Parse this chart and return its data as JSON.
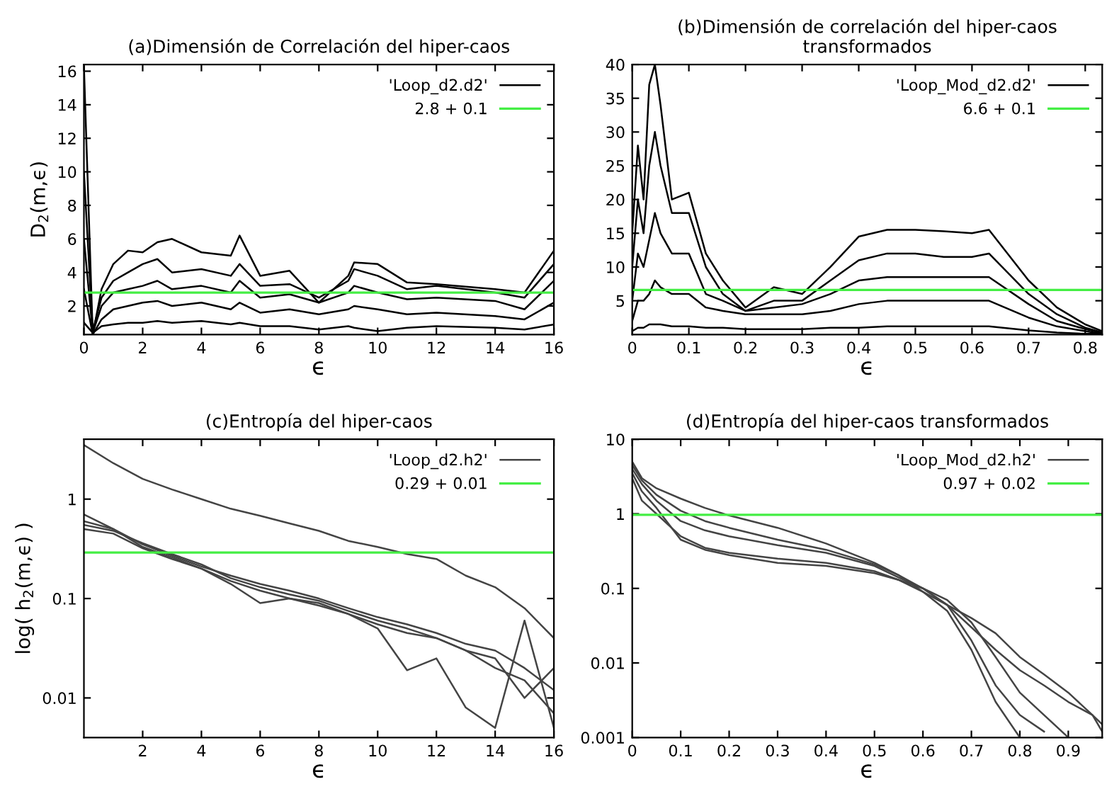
{
  "chart_data": [
    {
      "type": "line",
      "title": "(a)Dimensión de Correlación del hiper-caos",
      "xlabel": "ϵ",
      "ylabel": "D$_{2}$(m,ϵ)",
      "x": [
        0,
        0.3,
        0.6,
        1,
        1.5,
        2,
        2.5,
        3,
        4,
        5,
        5.3,
        6,
        7,
        8,
        9,
        9.2,
        10,
        11,
        12,
        14,
        15,
        16
      ],
      "series": [
        {
          "name": "'Loop_d2.d2'",
          "color": "#000000",
          "values": [
            16.3,
            0.3,
            3,
            4.5,
            5.3,
            5.2,
            5.8,
            6,
            5.2,
            5,
            6.2,
            3.8,
            4.1,
            2.2,
            3.8,
            4.6,
            4.5,
            3.4,
            3.3,
            3.0,
            2.8,
            5.3
          ]
        },
        {
          "color": "#000000",
          "values": [
            10,
            0.5,
            2.5,
            3.5,
            4,
            4.5,
            4.8,
            4,
            4.2,
            3.8,
            4.5,
            3.2,
            3.3,
            2.5,
            3.5,
            4.2,
            3.8,
            3,
            3.2,
            2.8,
            2.5,
            4.5
          ]
        },
        {
          "color": "#000000",
          "values": [
            6,
            0.4,
            2,
            2.8,
            3,
            3.2,
            3.5,
            3,
            3.2,
            2.8,
            3.5,
            2.5,
            2.7,
            2.2,
            2.8,
            3.2,
            2.8,
            2.4,
            2.5,
            2.3,
            1.8,
            3.5
          ]
        },
        {
          "color": "#000000",
          "values": [
            3,
            0.3,
            1.2,
            1.8,
            2,
            2.2,
            2.3,
            2,
            2.2,
            1.8,
            2.2,
            1.6,
            1.8,
            1.5,
            1.8,
            2,
            1.8,
            1.5,
            1.6,
            1.4,
            1.2,
            2.2
          ]
        },
        {
          "color": "#000000",
          "values": [
            1,
            0.4,
            0.8,
            0.9,
            1,
            1,
            1.1,
            1,
            1.1,
            0.9,
            1,
            0.8,
            0.8,
            0.6,
            0.8,
            0.7,
            0.5,
            0.7,
            0.8,
            0.7,
            0.6,
            0.9
          ]
        }
      ],
      "ref_lines": [
        {
          "axis": "y",
          "value": 2.8,
          "label": "2.8 + 0.1",
          "color": "#44ee44"
        }
      ],
      "xlim": [
        0,
        16
      ],
      "xticks": [
        0,
        2,
        4,
        6,
        8,
        10,
        12,
        14,
        16
      ],
      "ylim": [
        0.3,
        16.4
      ],
      "yticks": [
        2,
        4,
        6,
        8,
        10,
        12,
        14,
        16
      ],
      "legend": "top right",
      "grid": false
    },
    {
      "type": "line",
      "title": "(b)Dimensión de correlación del hiper-caos\ntransformados",
      "xlabel": "ϵ",
      "x": [
        0,
        0.01,
        0.02,
        0.03,
        0.04,
        0.05,
        0.07,
        0.1,
        0.13,
        0.16,
        0.2,
        0.25,
        0.3,
        0.35,
        0.4,
        0.45,
        0.5,
        0.55,
        0.6,
        0.63,
        0.7,
        0.75,
        0.8,
        0.83
      ],
      "series": [
        {
          "name": "'Loop_Mod_d2.d2'",
          "color": "#000000",
          "values": [
            15,
            28,
            20,
            37,
            40,
            34,
            20,
            21,
            12,
            8,
            4,
            7,
            6,
            10,
            14.5,
            15.5,
            15.5,
            15.3,
            15,
            15.5,
            8,
            4,
            1.5,
            0.5
          ]
        },
        {
          "color": "#000000",
          "values": [
            10,
            20,
            15,
            25,
            30,
            25,
            18,
            18,
            10,
            6,
            3.5,
            5,
            5,
            8,
            11,
            12,
            12,
            11.5,
            11.5,
            12,
            6,
            3,
            1,
            0.3
          ]
        },
        {
          "color": "#000000",
          "values": [
            5,
            12,
            10,
            14,
            18,
            15,
            12,
            12,
            6,
            5,
            3.5,
            4,
            4.5,
            6,
            8,
            8.5,
            8.5,
            8.5,
            8.5,
            8.5,
            4.5,
            2,
            0.8,
            0.2
          ]
        },
        {
          "color": "#000000",
          "values": [
            2,
            5,
            5,
            6,
            8,
            7,
            6,
            6,
            4,
            3.5,
            3,
            3,
            3,
            3.5,
            4.5,
            5,
            5,
            5,
            5,
            5,
            2.5,
            1.2,
            0.5,
            0.1
          ]
        },
        {
          "color": "#000000",
          "values": [
            0.5,
            1,
            1,
            1.5,
            1.5,
            1.5,
            1.2,
            1.2,
            1,
            1,
            0.8,
            0.8,
            0.8,
            1,
            1,
            1.2,
            1.2,
            1.2,
            1.2,
            1.2,
            0.6,
            0.3,
            0.1,
            0.1
          ]
        }
      ],
      "ref_lines": [
        {
          "axis": "y",
          "value": 6.6,
          "label": "6.6 + 0.1",
          "color": "#44ee44"
        }
      ],
      "xlim": [
        0,
        0.83
      ],
      "xticks": [
        0,
        0.1,
        0.2,
        0.3,
        0.4,
        0.5,
        0.6,
        0.7,
        0.8
      ],
      "ylim": [
        0,
        40
      ],
      "yticks": [
        5,
        10,
        15,
        20,
        25,
        30,
        35,
        40
      ],
      "legend": "top right",
      "grid": false
    },
    {
      "type": "line",
      "title": "(c)Entropía del hiper-caos",
      "xlabel": "ϵ",
      "ylabel": "log( h$_{2}$(m,ϵ) )",
      "log": "y",
      "x": [
        0,
        1,
        2,
        3,
        4,
        5,
        6,
        7,
        8,
        9,
        10,
        11,
        12,
        13,
        14,
        15,
        16
      ],
      "series": [
        {
          "name": "'Loop_d2.h2'",
          "color": "#444444",
          "values": [
            3.5,
            2.3,
            1.6,
            1.25,
            1.0,
            0.8,
            0.68,
            0.57,
            0.48,
            0.38,
            0.33,
            0.28,
            0.25,
            0.17,
            0.13,
            0.08,
            0.04
          ]
        },
        {
          "color": "#444444",
          "values": [
            0.7,
            0.5,
            0.35,
            0.27,
            0.21,
            0.17,
            0.14,
            0.12,
            0.1,
            0.08,
            0.065,
            0.055,
            0.045,
            0.035,
            0.03,
            0.02,
            0.012
          ]
        },
        {
          "color": "#444444",
          "values": [
            0.5,
            0.45,
            0.32,
            0.25,
            0.2,
            0.15,
            0.12,
            0.1,
            0.085,
            0.07,
            0.055,
            0.045,
            0.04,
            0.03,
            0.02,
            0.015,
            0.007
          ]
        },
        {
          "color": "#444444",
          "values": [
            0.6,
            0.5,
            0.33,
            0.26,
            0.2,
            0.14,
            0.09,
            0.1,
            0.09,
            0.07,
            0.05,
            0.019,
            0.025,
            0.008,
            0.005,
            0.06,
            0.005
          ]
        },
        {
          "color": "#444444",
          "values": [
            0.55,
            0.48,
            0.36,
            0.28,
            0.22,
            0.16,
            0.13,
            0.11,
            0.095,
            0.075,
            0.06,
            0.05,
            0.04,
            0.03,
            0.025,
            0.01,
            0.02
          ]
        }
      ],
      "ref_lines": [
        {
          "axis": "y",
          "value": 0.29,
          "label": "0.29 + 0.01",
          "color": "#44ee44"
        }
      ],
      "xlim": [
        0,
        16
      ],
      "xticks": [
        2,
        4,
        6,
        8,
        10,
        12,
        14,
        16
      ],
      "ylim": [
        0.004,
        4
      ],
      "yticks": [
        0.01,
        0.1,
        1
      ],
      "legend": "top right",
      "grid": false
    },
    {
      "type": "line",
      "title": "(d)Entropía del hiper-caos transformados",
      "xlabel": "ϵ",
      "log": "y",
      "x": [
        0,
        0.02,
        0.05,
        0.1,
        0.15,
        0.2,
        0.3,
        0.4,
        0.5,
        0.55,
        0.6,
        0.65,
        0.7,
        0.75,
        0.8,
        0.85,
        0.9,
        0.95,
        0.97
      ],
      "series": [
        {
          "name": "'Loop_Mod_d2.h2'",
          "color": "#444444",
          "values": [
            5,
            3,
            2.2,
            1.6,
            1.2,
            0.95,
            0.65,
            0.4,
            0.22,
            0.15,
            0.09,
            0.06,
            0.04,
            0.025,
            0.012,
            0.007,
            0.004,
            0.002,
            0.0015
          ]
        },
        {
          "color": "#444444",
          "values": [
            4,
            2.5,
            1.5,
            0.8,
            0.6,
            0.5,
            0.38,
            0.3,
            0.2,
            0.14,
            0.1,
            0.06,
            0.02,
            0.005,
            0.002,
            0.0012,
            null,
            null,
            null
          ]
        },
        {
          "color": "#444444",
          "values": [
            3,
            1.5,
            1,
            0.5,
            0.35,
            0.3,
            0.25,
            0.22,
            0.17,
            0.13,
            0.09,
            0.05,
            0.015,
            0.003,
            0.001,
            null,
            null,
            null,
            null
          ]
        },
        {
          "color": "#444444",
          "values": [
            3.5,
            2,
            1.2,
            0.45,
            0.33,
            0.28,
            0.22,
            0.2,
            0.16,
            0.13,
            0.1,
            0.07,
            0.035,
            0.012,
            0.004,
            0.002,
            0.001,
            null,
            null
          ]
        },
        {
          "color": "#444444",
          "values": [
            4.5,
            2.8,
            1.8,
            1.1,
            0.8,
            0.65,
            0.45,
            0.33,
            0.21,
            0.15,
            0.1,
            0.06,
            0.03,
            0.015,
            0.008,
            0.005,
            0.003,
            0.002,
            0.0012
          ]
        }
      ],
      "ref_lines": [
        {
          "axis": "y",
          "value": 0.97,
          "label": "0.97 + 0.02",
          "color": "#44ee44"
        }
      ],
      "xlim": [
        0,
        0.97
      ],
      "xticks": [
        0,
        0.1,
        0.2,
        0.3,
        0.4,
        0.5,
        0.6,
        0.7,
        0.8,
        0.9
      ],
      "ylim": [
        0.001,
        10
      ],
      "yticks": [
        0.001,
        0.01,
        0.1,
        1,
        10
      ],
      "legend": "top right",
      "grid": false
    }
  ]
}
